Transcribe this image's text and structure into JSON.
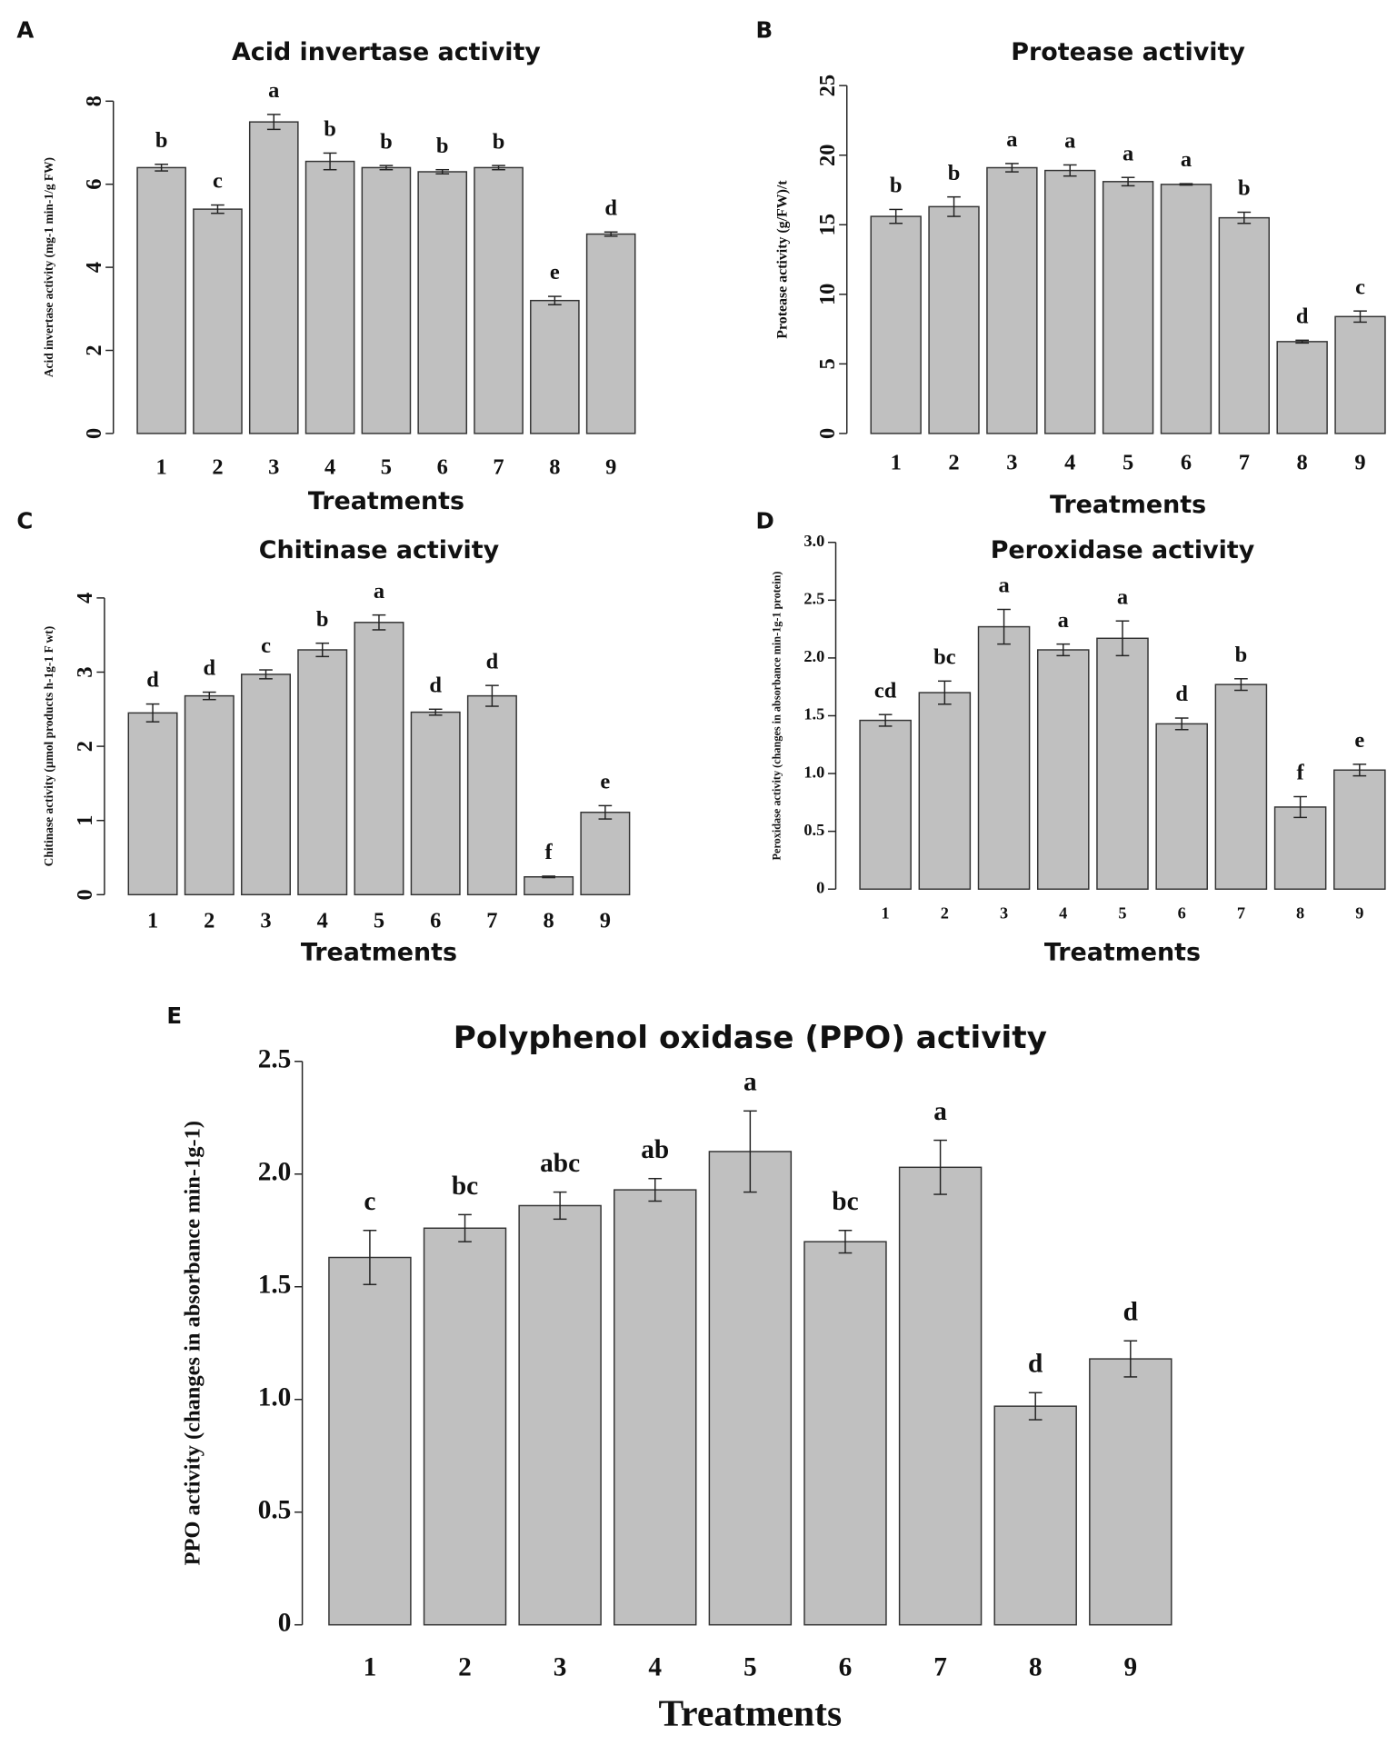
{
  "chart_data": [
    {
      "type": "bar",
      "panel": "A",
      "title": "Acid invertase activity",
      "xlabel": "Treatments",
      "ylabel": "Acid invertase activity (mg-1 min-1/g FW)",
      "categories": [
        "1",
        "2",
        "3",
        "4",
        "5",
        "6",
        "7",
        "8",
        "9"
      ],
      "values": [
        6.4,
        5.4,
        7.5,
        6.55,
        6.4,
        6.3,
        6.4,
        3.2,
        4.8
      ],
      "errors": [
        0.08,
        0.1,
        0.18,
        0.2,
        0.05,
        0.05,
        0.05,
        0.1,
        0.05
      ],
      "annotations": [
        "b",
        "c",
        "a",
        "b",
        "b",
        "b",
        "b",
        "e",
        "d"
      ],
      "ylim": [
        0,
        8
      ],
      "yticks": [
        0,
        2,
        4,
        6,
        8
      ],
      "color": "#c0c0c0"
    },
    {
      "type": "bar",
      "panel": "B",
      "title": "Protease activity",
      "xlabel": "Treatments",
      "ylabel": "Protease activity (g/FW)/t",
      "categories": [
        "1",
        "2",
        "3",
        "4",
        "5",
        "6",
        "7",
        "8",
        "9"
      ],
      "values": [
        15.6,
        16.3,
        19.1,
        18.9,
        18.1,
        17.9,
        15.5,
        6.6,
        8.4
      ],
      "errors": [
        0.5,
        0.7,
        0.3,
        0.4,
        0.3,
        0.05,
        0.4,
        0.1,
        0.4
      ],
      "annotations": [
        "b",
        "b",
        "a",
        "a",
        "a",
        "a",
        "b",
        "d",
        "c"
      ],
      "ylim": [
        0,
        25
      ],
      "yticks": [
        0,
        5,
        10,
        15,
        20,
        25
      ],
      "color": "#c0c0c0"
    },
    {
      "type": "bar",
      "panel": "C",
      "title": "Chitinase activity",
      "xlabel": "Treatments",
      "ylabel": "Chitinase activity (µmol products h-1g-1 F wt)",
      "categories": [
        "1",
        "2",
        "3",
        "4",
        "5",
        "6",
        "7",
        "8",
        "9"
      ],
      "values": [
        2.45,
        2.68,
        2.97,
        3.3,
        3.67,
        2.46,
        2.68,
        0.24,
        1.11
      ],
      "errors": [
        0.12,
        0.05,
        0.06,
        0.09,
        0.1,
        0.04,
        0.14,
        0.01,
        0.09
      ],
      "annotations": [
        "d",
        "d",
        "c",
        "b",
        "a",
        "d",
        "d",
        "f",
        "e"
      ],
      "ylim": [
        0,
        4
      ],
      "yticks": [
        0,
        1,
        2,
        3,
        4
      ],
      "color": "#c0c0c0"
    },
    {
      "type": "bar",
      "panel": "D",
      "title": "Peroxidase activity",
      "xlabel": "Treatments",
      "ylabel": "Peroxidase activity (changes in absorbance min-1g-1 protein)",
      "categories": [
        "1",
        "2",
        "3",
        "4",
        "5",
        "6",
        "7",
        "8",
        "9"
      ],
      "values": [
        1.46,
        1.7,
        2.27,
        2.07,
        2.17,
        1.43,
        1.77,
        0.71,
        1.03
      ],
      "errors": [
        0.05,
        0.1,
        0.15,
        0.05,
        0.15,
        0.05,
        0.05,
        0.09,
        0.05
      ],
      "annotations": [
        "cd",
        "bc",
        "a",
        "a",
        "a",
        "d",
        "b",
        "f",
        "e"
      ],
      "ylim": [
        0,
        3
      ],
      "yticks": [
        0,
        0.5,
        {
          "value": 1,
          "label": "1.0"
        },
        1.5,
        {
          "value": 2,
          "label": "2.0"
        },
        2.5,
        {
          "value": 3,
          "label": "3.0"
        }
      ],
      "color": "#c0c0c0"
    },
    {
      "type": "bar",
      "panel": "E",
      "title": "Polyphenol oxidase (PPO) activity",
      "xlabel": "Treatments",
      "ylabel": "PPO activity (changes in absorbance min-1g-1)",
      "categories": [
        "1",
        "2",
        "3",
        "4",
        "5",
        "6",
        "7",
        "8",
        "9"
      ],
      "values": [
        1.63,
        1.76,
        1.86,
        1.93,
        2.1,
        1.7,
        2.03,
        0.97,
        1.18
      ],
      "errors": [
        0.12,
        0.06,
        0.06,
        0.05,
        0.18,
        0.05,
        0.12,
        0.06,
        0.08
      ],
      "annotations": [
        "c",
        "bc",
        "abc",
        "ab",
        "a",
        "bc",
        "a",
        "d",
        "d"
      ],
      "ylim": [
        0,
        2.5
      ],
      "yticks": [
        0,
        0.5,
        {
          "value": 1,
          "label": "1.0"
        },
        1.5,
        {
          "value": 2,
          "label": "2.0"
        },
        2.5
      ],
      "color": "#c0c0c0"
    }
  ]
}
